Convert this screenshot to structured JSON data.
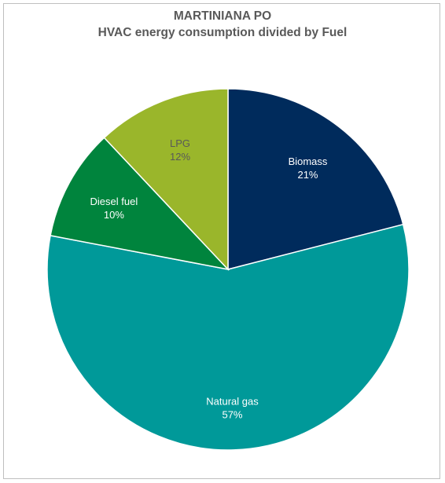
{
  "chart_data": {
    "type": "pie",
    "title": "MARTINIANA PO",
    "subtitle": "HVAC energy consumption divided by Fuel",
    "slices": [
      {
        "label": "Biomass",
        "value": 21,
        "value_label": "21%",
        "color": "#002b5c",
        "text_color": "#ffffff"
      },
      {
        "label": "Natural gas",
        "value": 57,
        "value_label": "57%",
        "color": "#009999",
        "text_color": "#ffffff"
      },
      {
        "label": "Diesel fuel",
        "value": 10,
        "value_label": "10%",
        "color": "#00843d",
        "text_color": "#ffffff"
      },
      {
        "label": "LPG",
        "value": 12,
        "value_label": "12%",
        "color": "#9ab62b",
        "text_color": "#595959"
      }
    ],
    "start_angle": "12 o'clock",
    "direction": "clockwise",
    "legend": "none"
  }
}
